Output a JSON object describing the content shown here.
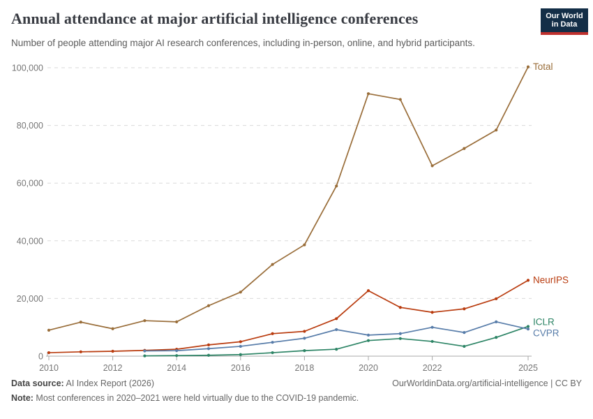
{
  "header": {
    "title": "Annual attendance at major artificial intelligence conferences",
    "subtitle": "Number of people attending major AI research conferences, including in-person, online, and hybrid participants.",
    "logo": {
      "line1": "Our World",
      "line2": "in Data",
      "bg_color": "#132E47",
      "bar_color": "#BF312E"
    }
  },
  "chart_data": {
    "type": "line",
    "title": "Annual attendance at major artificial intelligence conferences",
    "x": [
      2010,
      2011,
      2012,
      2013,
      2014,
      2015,
      2016,
      2017,
      2018,
      2019,
      2020,
      2021,
      2022,
      2023,
      2024,
      2025
    ],
    "series": [
      {
        "name": "Total",
        "color": "#996D39",
        "values": [
          9000,
          11800,
          9500,
          12300,
          11900,
          17500,
          22200,
          31800,
          38600,
          59000,
          91000,
          89000,
          66000,
          72000,
          78400,
          100300
        ]
      },
      {
        "name": "NeurIPS",
        "color": "#B93B0E",
        "values": [
          1200,
          1500,
          1700,
          2000,
          2400,
          3900,
          5000,
          7800,
          8600,
          13000,
          22700,
          16900,
          15200,
          16400,
          19900,
          26300
        ]
      },
      {
        "name": "ICLR",
        "color": "#2C8465",
        "values": [
          null,
          null,
          null,
          100,
          200,
          300,
          550,
          1200,
          1900,
          2400,
          5400,
          6100,
          5100,
          3400,
          6500,
          10300
        ]
      },
      {
        "name": "CVPR",
        "color": "#577CA9",
        "values": [
          null,
          null,
          null,
          1800,
          1900,
          2600,
          3400,
          4800,
          6200,
          9200,
          7300,
          7800,
          10000,
          8200,
          11900,
          9400
        ]
      }
    ],
    "ylim": [
      0,
      100000
    ],
    "yticks": [
      0,
      20000,
      40000,
      60000,
      80000,
      100000
    ],
    "xticks": [
      2010,
      2012,
      2014,
      2016,
      2018,
      2020,
      2022,
      2025
    ],
    "grid": "horizontal-dashed",
    "legend_position": "end-of-line-labels",
    "grid_color": "#dadada",
    "axis_color": "#a8a8a8"
  },
  "footer": {
    "data_source_label": "Data source:",
    "data_source_value": " AI Index Report (2026)",
    "url": "OurWorldinData.org/artificial-intelligence | CC BY",
    "note_label": "Note:",
    "note_value": " Most conferences in 2020–2021 were held virtually due to the COVID-19 pandemic."
  }
}
